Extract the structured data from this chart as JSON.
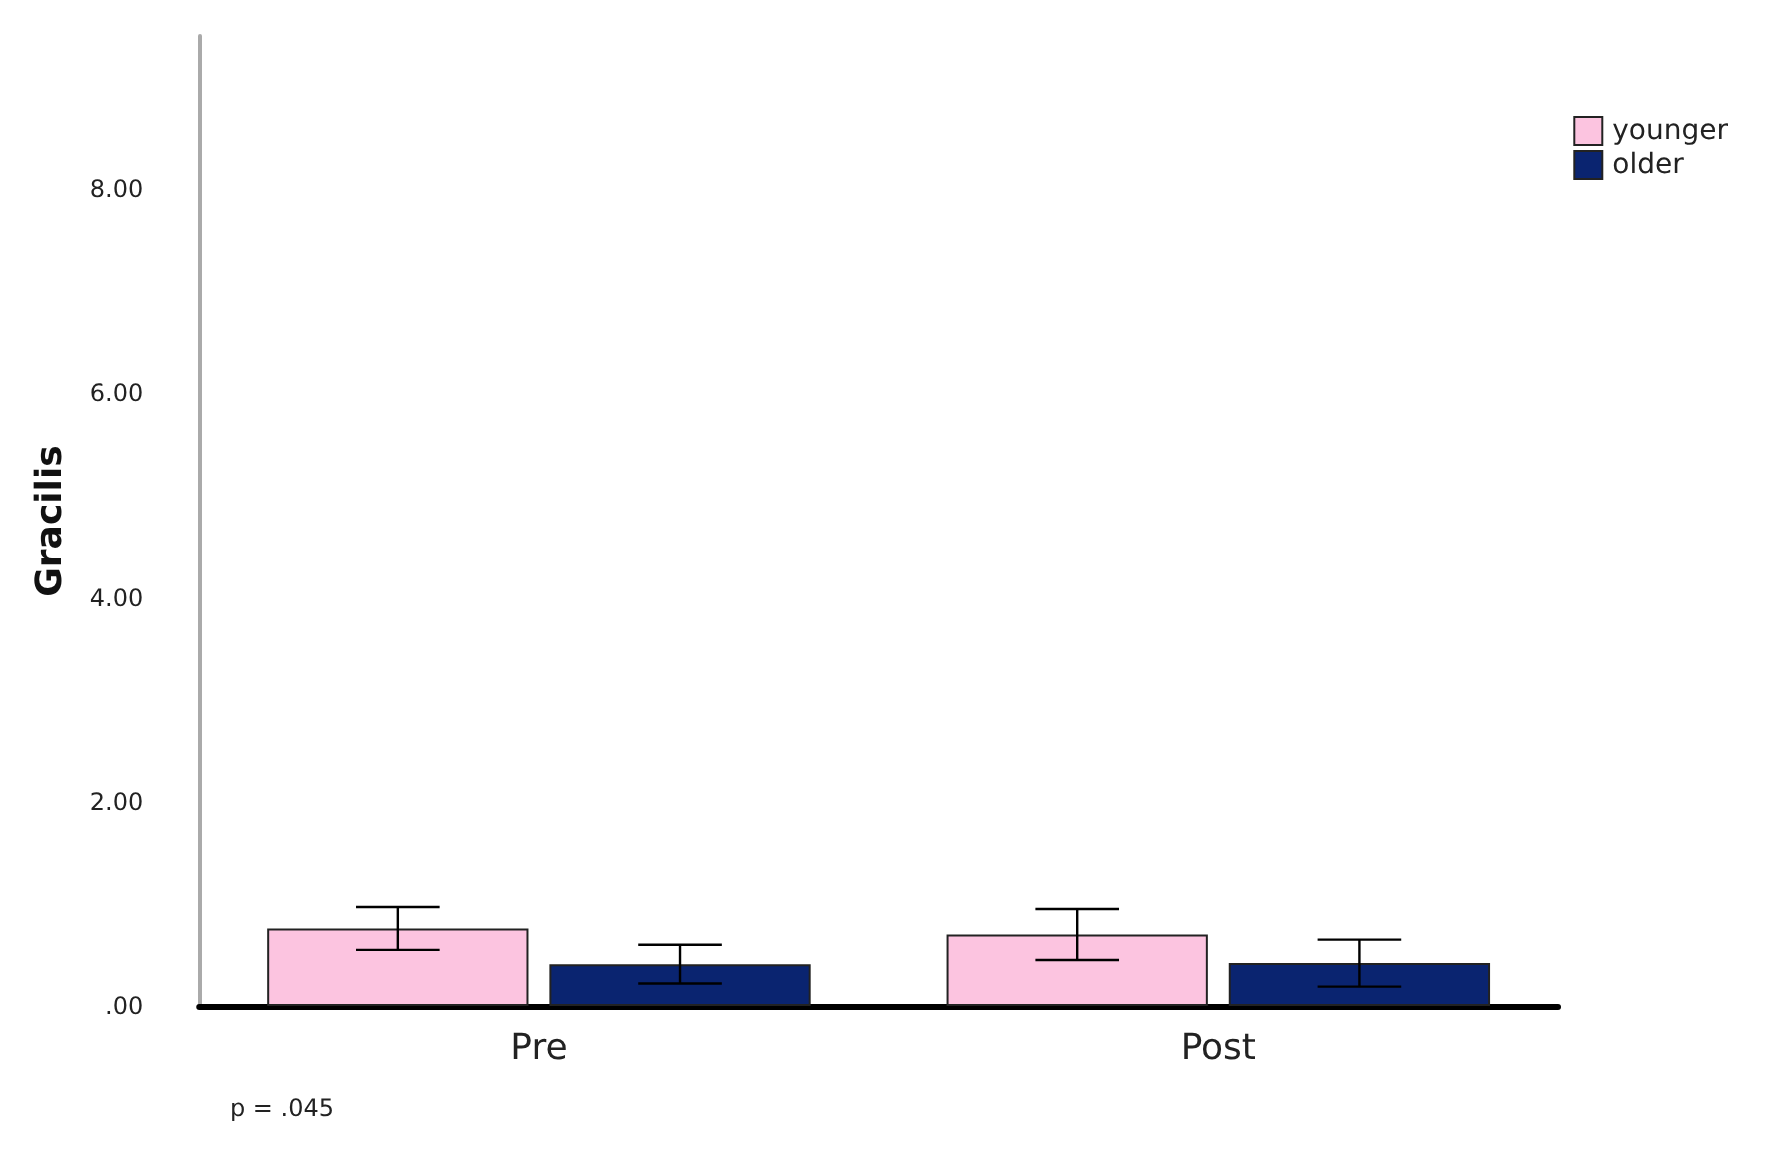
{
  "chart_data": {
    "type": "bar",
    "ylabel": "Gracilis",
    "categories": [
      "Pre",
      "Post"
    ],
    "series": [
      {
        "name": "younger",
        "color": "#fcc4e0",
        "values": [
          0.76,
          0.7
        ],
        "errors": [
          0.21,
          0.25
        ]
      },
      {
        "name": "older",
        "color": "#0a2470",
        "values": [
          0.41,
          0.42
        ],
        "errors": [
          0.19,
          0.23
        ]
      }
    ],
    "ylim": [
      0,
      9.5
    ],
    "yticks": [
      {
        "value": 0,
        "label": ".00"
      },
      {
        "value": 2,
        "label": "2.00"
      },
      {
        "value": 4,
        "label": "4.00"
      },
      {
        "value": 6,
        "label": "6.00"
      },
      {
        "value": 8,
        "label": "8.00"
      }
    ],
    "grid": false,
    "legend": "top right",
    "annotations": [
      "p = .045"
    ]
  }
}
